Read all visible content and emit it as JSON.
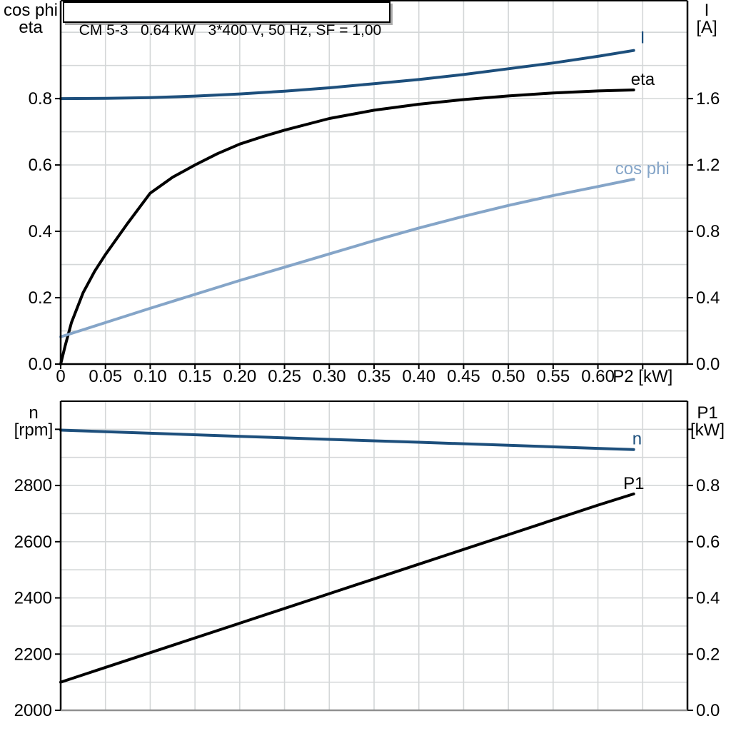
{
  "page": {
    "background": "#ffffff"
  },
  "colors": {
    "curve_dark_blue": "#1d4f7c",
    "curve_light_blue": "#85a5c8",
    "grid": "#d4d7d8",
    "axis": "#000000",
    "baseline_gray": "#909090"
  },
  "title_box": {
    "text": "CM 5-3   0.64 kW   3*400 V, 50 Hz, SF = 1,00"
  },
  "chart_data": [
    {
      "type": "line",
      "title": "CM 5-3   0.64 kW   3*400 V, 50 Hz, SF = 1,00",
      "x_axis": {
        "label": "P2 [kW]",
        "label_v": 0.65,
        "range": [
          0,
          0.7
        ],
        "grid_step": 0.05,
        "tick_values": [
          0,
          0.05,
          0.1,
          0.15,
          0.2,
          0.25,
          0.3,
          0.35,
          0.4,
          0.45,
          0.5,
          0.55,
          0.6,
          0.65
        ],
        "tick_labels": [
          "0",
          "0.05",
          "0.10",
          "0.15",
          "0.20",
          "0.25",
          "0.30",
          "0.35",
          "0.40",
          "0.45",
          "0.50",
          "0.55",
          "0.60",
          ""
        ]
      },
      "left_axis": {
        "title_lines": [
          "cos phi",
          "eta"
        ],
        "range": [
          0,
          1.095
        ],
        "grid_step": 0.1,
        "tick_values": [
          0.0,
          0.2,
          0.4,
          0.6,
          0.8
        ],
        "tick_labels": [
          "0.0",
          "0.2",
          "0.4",
          "0.6",
          "0.8"
        ]
      },
      "right_axis": {
        "title_lines": [
          "I",
          "[A]"
        ],
        "range": [
          0,
          2.19
        ],
        "tick_values": [
          0.0,
          0.4,
          0.8,
          1.2,
          1.6
        ],
        "tick_labels": [
          "0.0",
          "0.4",
          "0.8",
          "1.2",
          "1.6"
        ]
      },
      "series": [
        {
          "name": "I",
          "axis": "right",
          "color": "#1d4f7c",
          "label_anchor": "start",
          "label_offset": [
            9,
            -10
          ],
          "points": [
            [
              0,
              1.6
            ],
            [
              0.05,
              1.602
            ],
            [
              0.1,
              1.606
            ],
            [
              0.15,
              1.615
            ],
            [
              0.2,
              1.628
            ],
            [
              0.25,
              1.645
            ],
            [
              0.3,
              1.665
            ],
            [
              0.35,
              1.69
            ],
            [
              0.4,
              1.715
            ],
            [
              0.45,
              1.745
            ],
            [
              0.5,
              1.78
            ],
            [
              0.55,
              1.815
            ],
            [
              0.6,
              1.855
            ],
            [
              0.64,
              1.89
            ]
          ]
        },
        {
          "name": "eta",
          "axis": "left",
          "color": "#000000",
          "label_anchor": "start",
          "label_offset": [
            -4,
            -7
          ],
          "points": [
            [
              0,
              0
            ],
            [
              0.005,
              0.055
            ],
            [
              0.012,
              0.125
            ],
            [
              0.025,
              0.215
            ],
            [
              0.038,
              0.28
            ],
            [
              0.05,
              0.33
            ],
            [
              0.075,
              0.425
            ],
            [
              0.1,
              0.515
            ],
            [
              0.125,
              0.563
            ],
            [
              0.15,
              0.6
            ],
            [
              0.175,
              0.634
            ],
            [
              0.2,
              0.663
            ],
            [
              0.225,
              0.685
            ],
            [
              0.25,
              0.705
            ],
            [
              0.3,
              0.74
            ],
            [
              0.35,
              0.765
            ],
            [
              0.4,
              0.783
            ],
            [
              0.45,
              0.797
            ],
            [
              0.5,
              0.808
            ],
            [
              0.55,
              0.817
            ],
            [
              0.6,
              0.823
            ],
            [
              0.64,
              0.826
            ]
          ]
        },
        {
          "name": "cos phi",
          "axis": "left",
          "color": "#85a5c8",
          "label_anchor": "middle",
          "label_offset": [
            12,
            -7
          ],
          "points": [
            [
              0,
              0.082
            ],
            [
              0.05,
              0.125
            ],
            [
              0.1,
              0.168
            ],
            [
              0.15,
              0.21
            ],
            [
              0.2,
              0.252
            ],
            [
              0.25,
              0.292
            ],
            [
              0.3,
              0.332
            ],
            [
              0.35,
              0.372
            ],
            [
              0.4,
              0.41
            ],
            [
              0.45,
              0.445
            ],
            [
              0.5,
              0.478
            ],
            [
              0.55,
              0.508
            ],
            [
              0.6,
              0.535
            ],
            [
              0.64,
              0.557
            ]
          ]
        }
      ]
    },
    {
      "type": "line",
      "title": "",
      "x_axis": {
        "label": "",
        "label_v": null,
        "range": [
          0,
          0.7
        ],
        "grid_step": 0.05,
        "tick_values": [],
        "tick_labels": []
      },
      "left_axis": {
        "title_lines": [
          "n",
          "[rpm]"
        ],
        "range": [
          2000,
          3100
        ],
        "grid_step": 100,
        "tick_values": [
          2000,
          2200,
          2400,
          2600,
          2800,
          3000
        ],
        "tick_labels": [
          "2000",
          "2200",
          "2400",
          "2600",
          "2800",
          ""
        ]
      },
      "right_axis": {
        "title_lines": [
          "P1",
          "[kW]"
        ],
        "range": [
          0,
          1.1
        ],
        "tick_values": [
          0.0,
          0.2,
          0.4,
          0.6,
          0.8,
          1.0
        ],
        "tick_labels": [
          "0.0",
          "0.2",
          "0.4",
          "0.6",
          "0.8",
          ""
        ]
      },
      "series": [
        {
          "name": "n",
          "axis": "left",
          "color": "#1d4f7c",
          "label_anchor": "start",
          "label_offset": [
            -2,
            -7
          ],
          "points": [
            [
              0,
              2997
            ],
            [
              0.1,
              2986
            ],
            [
              0.2,
              2975
            ],
            [
              0.3,
              2964
            ],
            [
              0.4,
              2954
            ],
            [
              0.5,
              2943
            ],
            [
              0.6,
              2932
            ],
            [
              0.64,
              2928
            ]
          ]
        },
        {
          "name": "P1",
          "axis": "right",
          "color": "#000000",
          "label_anchor": "middle",
          "label_offset": [
            0,
            -7
          ],
          "points": [
            [
              0,
              0.1
            ],
            [
              0.1,
              0.205
            ],
            [
              0.2,
              0.31
            ],
            [
              0.3,
              0.415
            ],
            [
              0.4,
              0.52
            ],
            [
              0.5,
              0.625
            ],
            [
              0.6,
              0.73
            ],
            [
              0.64,
              0.77
            ]
          ]
        }
      ]
    }
  ]
}
